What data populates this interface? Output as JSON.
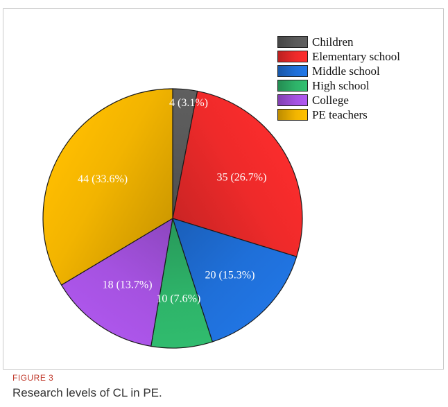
{
  "chart_data": {
    "type": "pie",
    "categories": [
      "Children",
      "Elementary school",
      "Middle school",
      "High school",
      "College",
      "PE teachers"
    ],
    "values": [
      4,
      35,
      20,
      10,
      18,
      44
    ],
    "percentages": [
      "3.1%",
      "26.7%",
      "15.3%",
      "7.6%",
      "13.7%",
      "33.6%"
    ],
    "data_labels": [
      "4 (3.1%)",
      "35 (26.7%)",
      "20 (15.3%)",
      "10 (7.6%)",
      "18 (13.7%)",
      "44 (33.6%)"
    ],
    "colors": [
      "#5a5a5a",
      "#ee2a2a",
      "#1f6fd8",
      "#2eb369",
      "#a552e0",
      "#f2b400"
    ],
    "legend": {
      "placement": "top-right",
      "entries": [
        "Children",
        "Elementary school",
        "Middle school",
        "High school",
        "College",
        "PE teachers"
      ]
    },
    "start": "12 o'clock, clockwise"
  },
  "figure": {
    "label": "FIGURE 3",
    "caption": "Research levels of CL in PE."
  }
}
